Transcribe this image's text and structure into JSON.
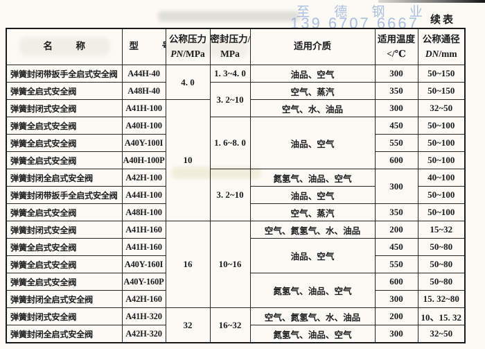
{
  "page": {
    "continued_label": "续表",
    "watermark": {
      "brand": "至 德 钢 业",
      "phone": "139 6707 6667"
    }
  },
  "header": {
    "name": "名　称",
    "model": "型　号",
    "pn_line1": "公称压力",
    "pn_sym": "PN",
    "pn_unit": "/MPa",
    "seal_line1": "密封压力/",
    "seal_line2": "MPa",
    "media": "适用介质",
    "temp_line1": "适用温度",
    "temp_line2": "</℃",
    "dn_line1": "公称通径",
    "dn_sym": "DN",
    "dn_unit": "/mm"
  },
  "rows": [
    {
      "name": "弹簧封闭带扳手全启式安全阀",
      "model": "A44H-40",
      "pn": "4. 0",
      "seal": "1. 3~4. 0",
      "media": "油品、空气",
      "temp": "300",
      "dn": "50~150"
    },
    {
      "name": "弹簧全启式安全阀",
      "model": "A48H-40",
      "seal": "3. 2~10",
      "media": "空气、蒸汽",
      "temp": "350",
      "dn": "50~150"
    },
    {
      "name": "弹簧封闭式安全阀",
      "model": "A41H-100",
      "pn": "10",
      "media": "空气、水、油品",
      "temp": "300",
      "dn": "32~50"
    },
    {
      "name": "弹簧全启式安全阀",
      "model": "A40H-100",
      "seal": "1. 6~8. 0",
      "media": "油品、空气",
      "temp": "450",
      "dn": "50~100"
    },
    {
      "name": "弹簧全启式安全阀",
      "model": "A40Y-100I",
      "temp": "550",
      "dn": "50~100"
    },
    {
      "name": "弹簧全启式安全阀",
      "model": "A40H-100P",
      "temp": "600",
      "dn": "50~100"
    },
    {
      "name": "弹簧封闭全启式安全阀",
      "model": "A42H-100",
      "seal": "3. 2~10",
      "media": "氮氢气、油品、空气",
      "temp": "300",
      "dn": "40~100"
    },
    {
      "name": "弹簧封闭带扳手全启式安全阀",
      "model": "A44H-100",
      "media": "油品、空气",
      "dn": "50~100"
    },
    {
      "name": "弹簧全启式安全阀",
      "model": "A48H-100",
      "media": "空气、蒸汽",
      "temp": "350",
      "dn": "50~100"
    },
    {
      "name": "弹簧封闭式安全阀",
      "model": "A41H-160",
      "pn": "16",
      "seal": "10~16",
      "media": "空气、氮氢气、水、油品",
      "temp": "200",
      "dn": "15~32"
    },
    {
      "name": "弹簧全启式安全阀",
      "model": "A41H-160",
      "media": "油品、空气",
      "temp": "450",
      "dn": "50~80"
    },
    {
      "name": "弹簧全启式安全阀",
      "model": "A40Y-160I",
      "temp": "550",
      "dn": "50~80"
    },
    {
      "name": "弹簧全启式安全阀",
      "model": "A40Y-160P",
      "media": "氮氢气、油品、空气",
      "temp": "600",
      "dn": "50~80"
    },
    {
      "name": "弹簧封闭全启式安全阀",
      "model": "A42H-160",
      "temp": "300",
      "dn": "15. 32~80"
    },
    {
      "name": "弹簧封闭式安全阀",
      "model": "A41H-320",
      "pn": "32",
      "seal": "16~32",
      "media": "空气、氮氢气、水、油品",
      "temp": "200",
      "dn": "10、15. 32"
    },
    {
      "name": "弹簧封闭全启式安全阀",
      "model": "A42H-320",
      "media": "氮氢气、油品、空气",
      "temp": "300",
      "dn": "32~50"
    }
  ]
}
